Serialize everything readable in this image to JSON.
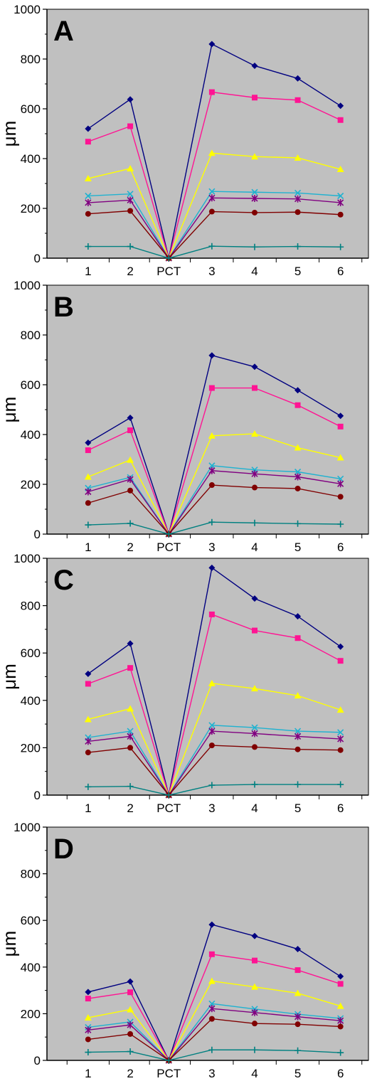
{
  "chart_data": [
    {
      "type": "line",
      "panel_label": "A",
      "ylabel": "μm",
      "xlabel": "",
      "ylim": [
        0,
        1000
      ],
      "yticks": [
        "0",
        "200",
        "400",
        "600",
        "800",
        "1000"
      ],
      "categories": [
        "1",
        "2",
        "PCT",
        "3",
        "4",
        "5",
        "6"
      ],
      "grid": false,
      "series": [
        {
          "color": "#000080",
          "marker": "diamond",
          "values": [
            520,
            638,
            0,
            860,
            773,
            722,
            612
          ]
        },
        {
          "color": "#ff1493",
          "marker": "square",
          "values": [
            468,
            530,
            0,
            667,
            645,
            635,
            555
          ]
        },
        {
          "color": "#ffff00",
          "marker": "triangle",
          "values": [
            320,
            360,
            0,
            422,
            408,
            403,
            357
          ]
        },
        {
          "color": "#20b2d0",
          "marker": "x",
          "values": [
            250,
            258,
            0,
            268,
            265,
            262,
            250
          ]
        },
        {
          "color": "#800080",
          "marker": "star",
          "values": [
            223,
            233,
            0,
            242,
            240,
            238,
            223
          ]
        },
        {
          "color": "#800000",
          "marker": "circle",
          "values": [
            178,
            190,
            0,
            187,
            183,
            185,
            175
          ]
        },
        {
          "color": "#008080",
          "marker": "plus",
          "values": [
            47,
            47,
            0,
            48,
            45,
            47,
            45
          ]
        }
      ]
    },
    {
      "type": "line",
      "panel_label": "B",
      "ylabel": "μm",
      "xlabel": "",
      "ylim": [
        0,
        1000
      ],
      "yticks": [
        "0",
        "200",
        "400",
        "600",
        "800",
        "1000"
      ],
      "categories": [
        "1",
        "2",
        "PCT",
        "3",
        "4",
        "5",
        "6"
      ],
      "grid": false,
      "series": [
        {
          "color": "#000080",
          "marker": "diamond",
          "values": [
            367,
            467,
            0,
            718,
            672,
            578,
            475
          ]
        },
        {
          "color": "#ff1493",
          "marker": "square",
          "values": [
            337,
            417,
            0,
            587,
            587,
            518,
            432
          ]
        },
        {
          "color": "#ffff00",
          "marker": "triangle",
          "values": [
            230,
            298,
            0,
            395,
            403,
            347,
            307
          ]
        },
        {
          "color": "#20b2d0",
          "marker": "x",
          "values": [
            185,
            228,
            0,
            275,
            258,
            250,
            222
          ]
        },
        {
          "color": "#800080",
          "marker": "star",
          "values": [
            170,
            220,
            0,
            255,
            242,
            230,
            202
          ]
        },
        {
          "color": "#800000",
          "marker": "circle",
          "values": [
            125,
            175,
            0,
            197,
            187,
            183,
            150
          ]
        },
        {
          "color": "#008080",
          "marker": "plus",
          "values": [
            37,
            43,
            0,
            48,
            45,
            42,
            40
          ]
        }
      ]
    },
    {
      "type": "line",
      "panel_label": "C",
      "ylabel": "μm",
      "xlabel": "",
      "ylim": [
        0,
        1000
      ],
      "yticks": [
        "0",
        "200",
        "400",
        "600",
        "800",
        "1000"
      ],
      "categories": [
        "1",
        "2",
        "PCT",
        "3",
        "4",
        "5",
        "6"
      ],
      "grid": false,
      "series": [
        {
          "color": "#000080",
          "marker": "diamond",
          "values": [
            512,
            640,
            0,
            960,
            830,
            755,
            627
          ]
        },
        {
          "color": "#ff1493",
          "marker": "square",
          "values": [
            470,
            537,
            0,
            763,
            695,
            663,
            567
          ]
        },
        {
          "color": "#ffff00",
          "marker": "triangle",
          "values": [
            320,
            365,
            0,
            472,
            450,
            420,
            360
          ]
        },
        {
          "color": "#20b2d0",
          "marker": "x",
          "values": [
            243,
            270,
            0,
            295,
            285,
            270,
            265
          ]
        },
        {
          "color": "#800080",
          "marker": "star",
          "values": [
            227,
            248,
            0,
            270,
            260,
            248,
            237
          ]
        },
        {
          "color": "#800000",
          "marker": "circle",
          "values": [
            180,
            200,
            0,
            210,
            203,
            193,
            190
          ]
        },
        {
          "color": "#008080",
          "marker": "plus",
          "values": [
            35,
            37,
            0,
            42,
            45,
            45,
            45
          ]
        }
      ]
    },
    {
      "type": "line",
      "panel_label": "D",
      "ylabel": "μm",
      "xlabel": "",
      "ylim": [
        0,
        1000
      ],
      "yticks": [
        "0",
        "200",
        "400",
        "600",
        "800",
        "1000"
      ],
      "categories": [
        "1",
        "2",
        "PCT",
        "3",
        "4",
        "5",
        "6"
      ],
      "grid": false,
      "series": [
        {
          "color": "#000080",
          "marker": "diamond",
          "values": [
            293,
            338,
            0,
            582,
            533,
            477,
            360
          ]
        },
        {
          "color": "#ff1493",
          "marker": "square",
          "values": [
            265,
            292,
            0,
            455,
            428,
            387,
            328
          ]
        },
        {
          "color": "#ffff00",
          "marker": "triangle",
          "values": [
            183,
            218,
            0,
            340,
            315,
            288,
            233
          ]
        },
        {
          "color": "#20b2d0",
          "marker": "x",
          "values": [
            142,
            165,
            0,
            243,
            220,
            198,
            180
          ]
        },
        {
          "color": "#800080",
          "marker": "star",
          "values": [
            130,
            152,
            0,
            222,
            205,
            187,
            170
          ]
        },
        {
          "color": "#800000",
          "marker": "circle",
          "values": [
            90,
            113,
            0,
            178,
            158,
            155,
            145
          ]
        },
        {
          "color": "#008080",
          "marker": "plus",
          "values": [
            35,
            38,
            0,
            45,
            45,
            42,
            33
          ]
        }
      ]
    }
  ]
}
